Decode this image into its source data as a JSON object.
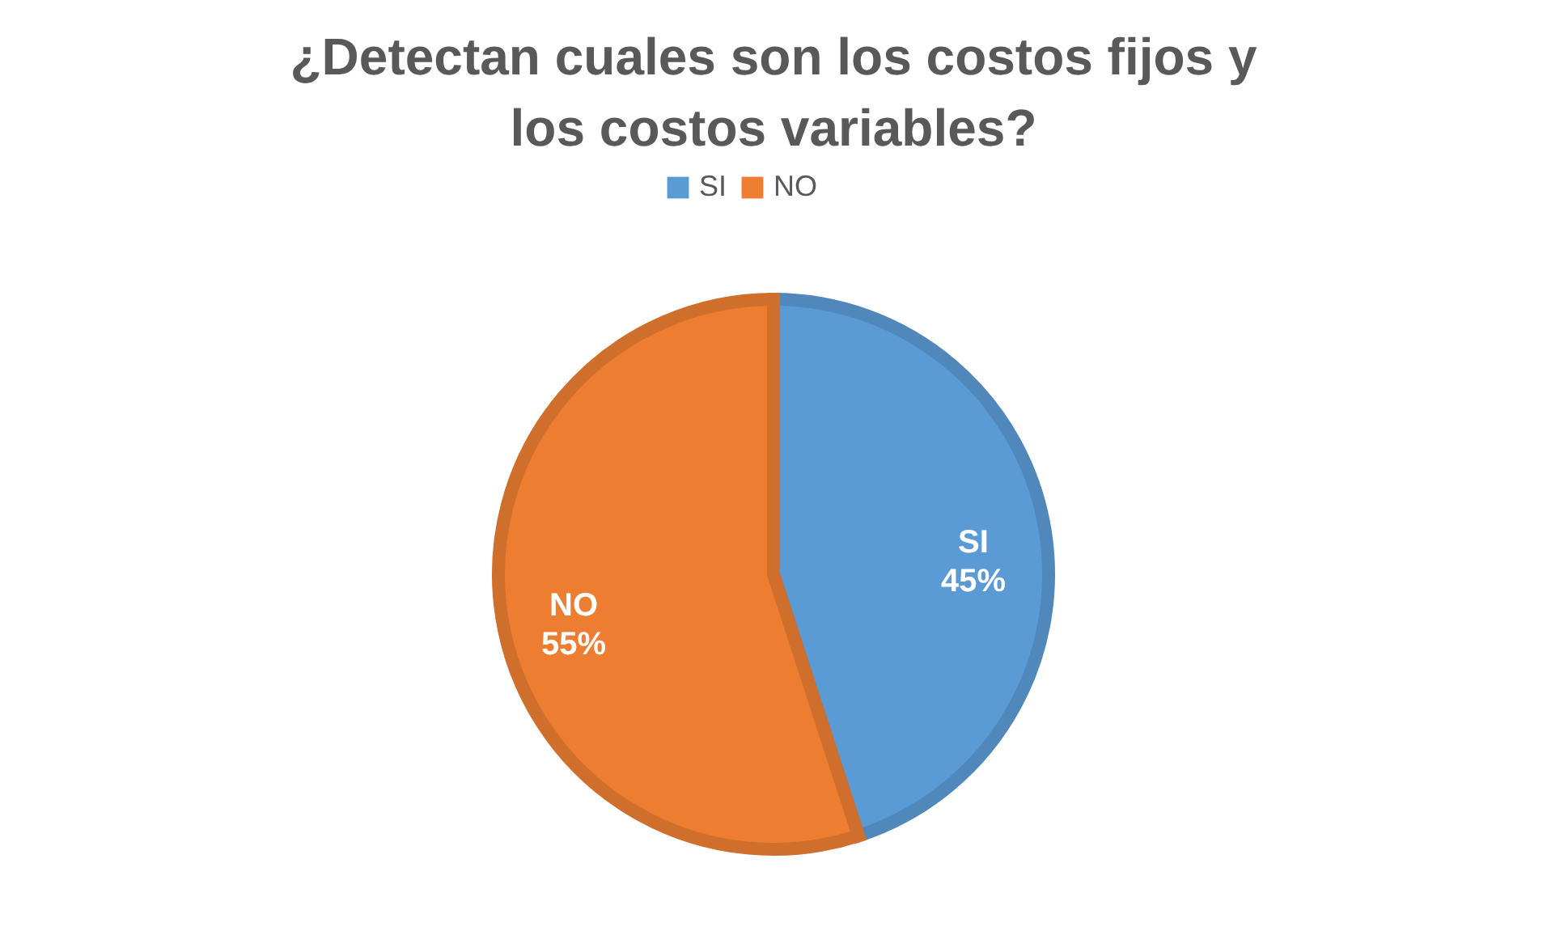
{
  "chart_data": {
    "type": "pie",
    "title": "¿Detectan cuales son los costos fijos y los costos variables?",
    "categories": [
      "SI",
      "NO"
    ],
    "values": [
      45,
      55
    ],
    "colors": [
      "#5b9bd5",
      "#ed7d31"
    ],
    "value_labels": [
      "45%",
      "55%"
    ],
    "legend": "top"
  }
}
